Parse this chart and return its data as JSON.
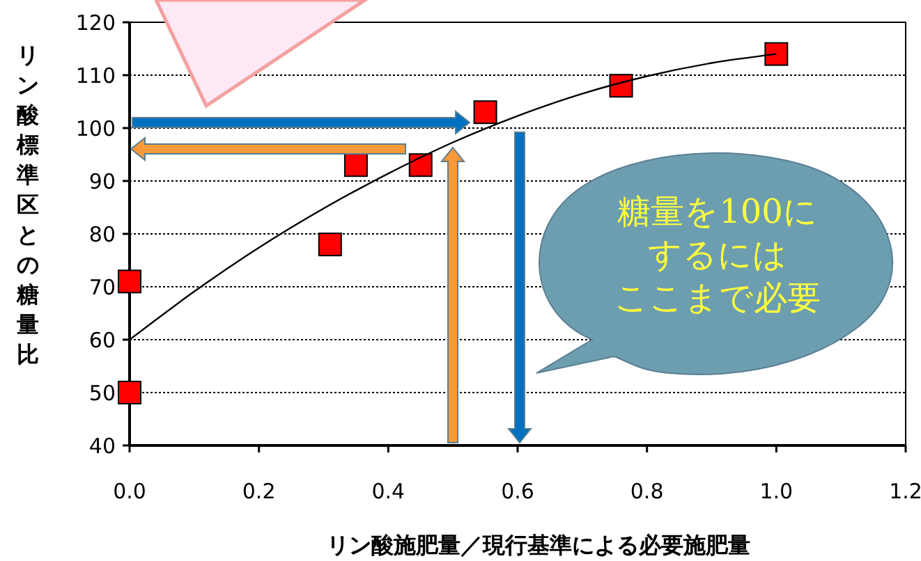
{
  "chart_data": {
    "type": "scatter",
    "xlabel": "リン酸施肥量／現行基準による必要施肥量",
    "ylabel": "リン酸標準区との糖量比",
    "xlim": [
      0,
      1.2
    ],
    "xticks": [
      {
        "value": 0,
        "label": "0.0"
      },
      {
        "value": 0.2,
        "label": "0.2"
      },
      {
        "value": 0.4,
        "label": "0.4"
      },
      {
        "value": 0.6,
        "label": "0.6"
      },
      {
        "value": 0.8,
        "label": "0.8"
      },
      {
        "value": 1,
        "label": "1.0"
      },
      {
        "value": 1.2,
        "label": "1.2"
      }
    ],
    "ylim": [
      40,
      120
    ],
    "yticks": [
      40,
      50,
      60,
      70,
      80,
      90,
      100,
      110,
      120
    ],
    "grid": "y",
    "marker": "square",
    "series": [
      {
        "color": "#ff0000",
        "x": [
          0,
          0,
          0.31,
          0.35,
          0.45,
          0.55,
          0.76,
          1.0
        ],
        "values": [
          50,
          71,
          78,
          93,
          93,
          103,
          108,
          114
        ]
      },
      {
        "type": "line",
        "color": "#000000",
        "marker": "none",
        "x": [
          0,
          0.1,
          0.2,
          0.3,
          0.4,
          0.5,
          0.6,
          0.7,
          0.8,
          0.9,
          1.0
        ],
        "values": [
          60,
          69.1,
          77.4,
          84.8,
          91.4,
          97.3,
          102.3,
          106.5,
          109.8,
          112.3,
          114
        ]
      }
    ],
    "annotations": [
      "糖量を100に",
      "するには",
      "ここまで必要"
    ]
  }
}
